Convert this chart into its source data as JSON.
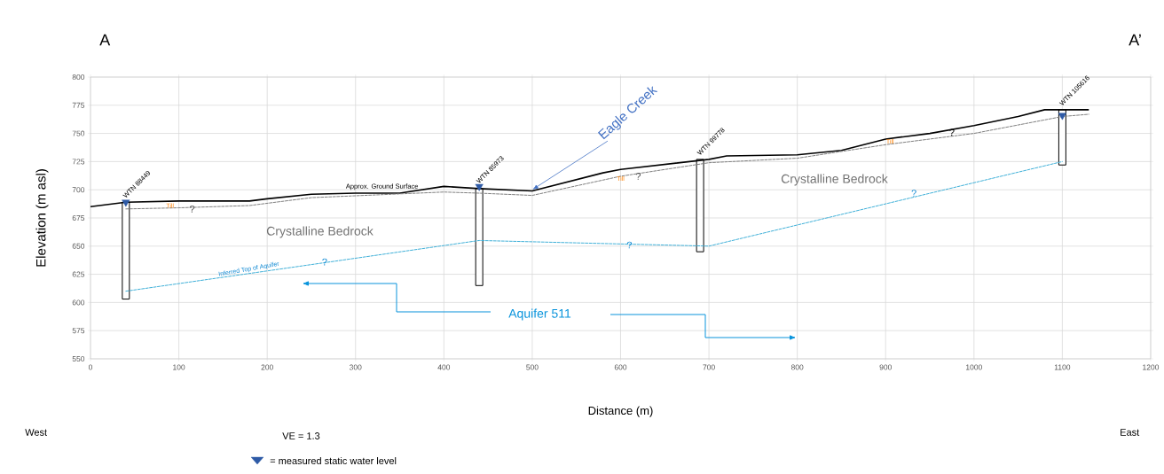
{
  "chart_data": {
    "type": "line",
    "xlabel": "Distance (m)",
    "ylabel": "Elevation (m asl)",
    "xlim": [
      0,
      1200
    ],
    "ylim": [
      550,
      800
    ],
    "xticks": [
      0,
      100,
      200,
      300,
      400,
      500,
      600,
      700,
      800,
      900,
      1000,
      1100,
      1200
    ],
    "yticks": [
      550,
      575,
      600,
      625,
      650,
      675,
      700,
      725,
      750,
      775,
      800
    ],
    "grid": true,
    "legend": "bottom",
    "series": [
      {
        "color": "#000000",
        "line_style": "solid",
        "x": [
          0,
          40,
          100,
          180,
          200,
          250,
          300,
          350,
          400,
          440,
          500,
          580,
          600,
          700,
          720,
          800,
          850,
          900,
          950,
          1000,
          1050,
          1080,
          1130
        ],
        "values": [
          685,
          689,
          690,
          690,
          692,
          696,
          697,
          697,
          703,
          701,
          699,
          715,
          718,
          727,
          730,
          731,
          735,
          745,
          750,
          757,
          765,
          771,
          771
        ]
      },
      {
        "color": "#808080",
        "line_style": "dashed",
        "x": [
          40,
          100,
          180,
          250,
          400,
          440,
          500,
          600,
          700,
          800,
          900,
          1000,
          1100,
          1130
        ],
        "values": [
          683,
          684,
          686,
          693,
          698,
          697,
          695,
          712,
          724,
          728,
          740,
          750,
          765,
          767
        ]
      },
      {
        "color": "#3fb0d8",
        "line_style": "dashed",
        "x": [
          40,
          440,
          700,
          1100
        ],
        "values": [
          610,
          655,
          650,
          725
        ]
      },
      {
        "type": "bar",
        "color": "#000000",
        "x": [
          40,
          440,
          690,
          1100
        ],
        "base": [
          603,
          615,
          645,
          722
        ],
        "values": [
          86,
          86,
          82,
          49
        ]
      },
      {
        "type": "scatter",
        "name": "= measured static water level",
        "color": "#2e5aa6",
        "marker": "triangle",
        "x": [
          40,
          440,
          1100
        ],
        "values": [
          689,
          703,
          766
        ]
      }
    ],
    "annotations": [
      "A",
      "A’",
      "West",
      "East",
      "VE = 1.3",
      {
        "text": "WTN 88449",
        "x": 40,
        "y": 691
      },
      {
        "text": "WTN 85973",
        "x": 440,
        "y": 704
      },
      {
        "text": "WTN 99778",
        "x": 690,
        "y": 729
      },
      {
        "text": "WTN 105616",
        "x": 1100,
        "y": 773
      },
      {
        "text": "Approx. Ground Surface",
        "x": 330,
        "y": 699
      },
      {
        "text": "Eagle Creek",
        "x": 500,
        "y": 700
      },
      "Crystalline Bedrock",
      "Crystalline Bedrock",
      {
        "text": "Inferred Top of Aquifer",
        "x": 180,
        "y": 626
      },
      "Aquifer 511",
      {
        "text": "?",
        "x": 115,
        "y": 683
      },
      {
        "text": "?",
        "x": 620,
        "y": 712
      },
      {
        "text": "?",
        "x": 975,
        "y": 751
      },
      {
        "text": "?",
        "x": 265,
        "y": 636
      },
      {
        "text": "?",
        "x": 610,
        "y": 651
      },
      {
        "text": "?",
        "x": 932,
        "y": 697
      },
      {
        "text": "Till",
        "x": 90,
        "y": 686
      },
      {
        "text": "Till",
        "x": 600,
        "y": 710
      },
      {
        "text": "Till",
        "x": 905,
        "y": 743
      }
    ]
  }
}
